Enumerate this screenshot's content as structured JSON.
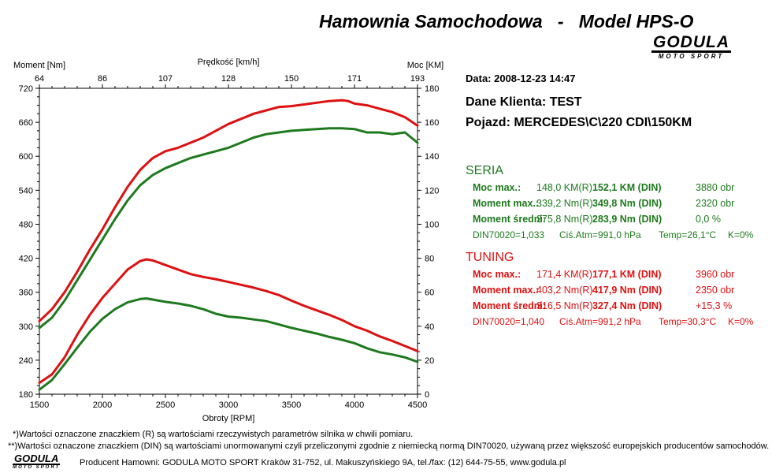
{
  "header": {
    "title": "Hamownia Samochodowa   -   Model HPS-O",
    "logo_main": "GODULA",
    "logo_sub": "MOTO SPORT"
  },
  "info": {
    "date": "Data: 2008-12-23  14:47",
    "client": "Dane Klienta: TEST",
    "vehicle": "Pojazd: MERCEDES\\C\\220 CDI\\150KM"
  },
  "seria": {
    "title": "SERIA",
    "color": "#1e7a1e",
    "rows": [
      {
        "label": "Moc max.:",
        "r": "148,0 KM(R)",
        "din": "152,1 KM (DIN)",
        "extra": "3880 obr"
      },
      {
        "label": "Moment max.:",
        "r": "339,2 Nm(R)",
        "din": "349,8 Nm (DIN)",
        "extra": "2320 obr"
      },
      {
        "label": "Moment średni:",
        "r": "275,8 Nm(R)",
        "din": "283,9 Nm (DIN)",
        "extra": "0,0 %"
      }
    ],
    "conditions": {
      "din": "DIN70020=1,033",
      "atm": "Ciś.Atm=991,0 hPa",
      "temp": "Temp=26,1°C",
      "k": "K=0%"
    }
  },
  "tuning": {
    "title": "TUNING",
    "color": "#dd1111",
    "rows": [
      {
        "label": "Moc max.:",
        "r": "171,4 KM(R)",
        "din": "177,1 KM (DIN)",
        "extra": "3960 obr"
      },
      {
        "label": "Moment max.:",
        "r": "403,2 Nm(R)",
        "din": "417,9 Nm (DIN)",
        "extra": "2350 obr"
      },
      {
        "label": "Moment średni:",
        "r": "316,5 Nm(R)",
        "din": "327,4 Nm (DIN)",
        "extra": "+15,3 %"
      }
    ],
    "conditions": {
      "din": "DIN70020=1,040",
      "atm": "Ciś.Atm=991,2 hPa",
      "temp": "Temp=30,3°C",
      "k": "K=0%"
    }
  },
  "footer": {
    "note1": "*)Wartości oznaczone znaczkiem (R) są wartościami rzeczywistych parametrów silnika w chwili pomiaru.",
    "note2": "**)Wartości oznaczone znaczkiem (DIN) są wartościami unormowanymi czyli przeliczonymi zgodnie z niemiecką normą DIN70020, używaną przez większość europejskich producentów samochodów.",
    "producer": "Producent Hamowni: GODULA MOTO SPORT Kraków 31-752, ul. Makuszyńskiego 9A, tel./fax: (12) 644-75-55, www.godula.pl",
    "logo_main": "GODULA",
    "logo_sub": "MOTO SPORT"
  },
  "chart_data": {
    "type": "line",
    "xlabel": "Obroty [RPM]",
    "top_axis_label": "Prędkość [km/h]",
    "ylabel_left": "Moment [Nm]",
    "ylabel_right": "Moc [KM]",
    "xlim": [
      1500,
      4500
    ],
    "ylim_left": [
      180,
      720
    ],
    "ylim_right": [
      0,
      180
    ],
    "x_ticks": [
      1500,
      2000,
      2500,
      3000,
      3500,
      4000,
      4500
    ],
    "top_ticks": [
      "64",
      "86",
      "107",
      "128",
      "150",
      "171",
      "193"
    ],
    "left_ticks": [
      180,
      240,
      300,
      360,
      420,
      480,
      540,
      600,
      660,
      720
    ],
    "right_ticks": [
      0,
      20,
      40,
      60,
      80,
      100,
      120,
      140,
      160,
      180
    ],
    "grid": false,
    "series": [
      {
        "color": "#dd1111",
        "axis": "left",
        "x": [
          1500,
          1600,
          1700,
          1800,
          1900,
          2000,
          2100,
          2200,
          2300,
          2350,
          2400,
          2500,
          2600,
          2700,
          2800,
          2900,
          3000,
          3100,
          3200,
          3300,
          3400,
          3500,
          3600,
          3700,
          3800,
          3900,
          4000,
          4100,
          4200,
          4300,
          4400,
          4500
        ],
        "values": [
          200,
          215,
          245,
          285,
          320,
          350,
          375,
          400,
          415,
          418,
          416,
          408,
          400,
          392,
          387,
          383,
          378,
          373,
          368,
          362,
          355,
          345,
          336,
          328,
          320,
          311,
          300,
          292,
          282,
          274,
          265,
          256
        ]
      },
      {
        "color": "#dd1111",
        "axis": "right",
        "x": [
          1500,
          1600,
          1700,
          1800,
          1900,
          2000,
          2100,
          2200,
          2300,
          2400,
          2500,
          2600,
          2700,
          2800,
          2900,
          3000,
          3100,
          3200,
          3300,
          3400,
          3500,
          3600,
          3700,
          3800,
          3900,
          3950,
          4000,
          4100,
          4200,
          4300,
          4400,
          4500
        ],
        "values": [
          43,
          50,
          60,
          72,
          85,
          97,
          110,
          122,
          132,
          139,
          143,
          145,
          148,
          151,
          155,
          159,
          162,
          165,
          167,
          169,
          169.5,
          170.5,
          171.5,
          172.5,
          173,
          172.5,
          171,
          170,
          168,
          166,
          163,
          158
        ]
      },
      {
        "color": "#1e7a1e",
        "axis": "left",
        "x": [
          1500,
          1600,
          1700,
          1800,
          1900,
          2000,
          2100,
          2200,
          2300,
          2350,
          2400,
          2500,
          2600,
          2700,
          2800,
          2900,
          3000,
          3100,
          3200,
          3300,
          3400,
          3500,
          3600,
          3700,
          3800,
          3900,
          4000,
          4100,
          4200,
          4300,
          4400,
          4500
        ],
        "values": [
          188,
          205,
          233,
          262,
          290,
          313,
          330,
          342,
          348,
          349,
          347,
          343,
          340,
          336,
          330,
          322,
          317,
          315,
          312,
          309,
          303,
          297,
          292,
          287,
          281,
          276,
          270,
          261,
          254,
          250,
          245,
          237
        ]
      },
      {
        "color": "#1e7a1e",
        "axis": "right",
        "x": [
          1500,
          1600,
          1700,
          1800,
          1900,
          2000,
          2100,
          2200,
          2300,
          2400,
          2500,
          2600,
          2700,
          2800,
          2900,
          3000,
          3100,
          3200,
          3300,
          3400,
          3500,
          3600,
          3700,
          3800,
          3900,
          4000,
          4050,
          4100,
          4200,
          4300,
          4400,
          4500
        ],
        "values": [
          39,
          45,
          55,
          67,
          79,
          91,
          103,
          114,
          123,
          129,
          133,
          136,
          139,
          141,
          143,
          145,
          148,
          151,
          153,
          154,
          155,
          155.5,
          156,
          156.5,
          156.5,
          156,
          155,
          154,
          154,
          153,
          154,
          148
        ]
      }
    ]
  }
}
